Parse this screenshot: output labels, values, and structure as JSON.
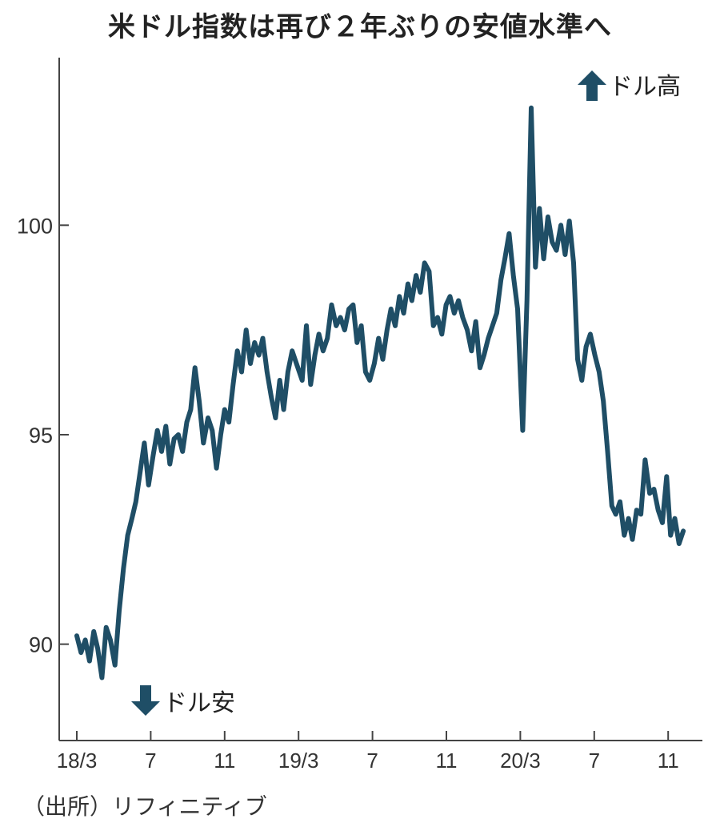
{
  "chart_data": {
    "type": "line",
    "title": "米ドル指数は再び２年ぶりの安値水準へ",
    "source": "（出所）リフィニティブ",
    "ylim": [
      87.7,
      104.0
    ],
    "yticks": [
      90,
      95,
      100
    ],
    "x_ticks": [
      {
        "label": "18/3",
        "date": "2018-03"
      },
      {
        "label": "7",
        "date": "2018-07"
      },
      {
        "label": "11",
        "date": "2018-11"
      },
      {
        "label": "19/3",
        "date": "2019-03"
      },
      {
        "label": "7",
        "date": "2019-07"
      },
      {
        "label": "11",
        "date": "2019-11"
      },
      {
        "label": "20/3",
        "date": "2020-03"
      },
      {
        "label": "7",
        "date": "2020-07"
      },
      {
        "label": "11",
        "date": "2020-11"
      }
    ],
    "annotations": [
      {
        "text": "ドル高",
        "arrow": "up",
        "placement": "top-right"
      },
      {
        "text": "ドル安",
        "arrow": "down",
        "placement": "bottom-left"
      }
    ],
    "grid": false,
    "series": [
      {
        "color": "#1f4e66",
        "points": [
          [
            "2018-03-01",
            90.2
          ],
          [
            "2018-03-08",
            89.8
          ],
          [
            "2018-03-15",
            90.1
          ],
          [
            "2018-03-22",
            89.6
          ],
          [
            "2018-03-29",
            90.3
          ],
          [
            "2018-04-05",
            89.9
          ],
          [
            "2018-04-12",
            89.2
          ],
          [
            "2018-04-19",
            90.4
          ],
          [
            "2018-04-26",
            90.1
          ],
          [
            "2018-05-03",
            89.5
          ],
          [
            "2018-05-10",
            90.8
          ],
          [
            "2018-05-17",
            91.8
          ],
          [
            "2018-05-24",
            92.6
          ],
          [
            "2018-05-31",
            93.0
          ],
          [
            "2018-06-07",
            93.4
          ],
          [
            "2018-06-14",
            94.1
          ],
          [
            "2018-06-21",
            94.8
          ],
          [
            "2018-06-28",
            93.8
          ],
          [
            "2018-07-05",
            94.5
          ],
          [
            "2018-07-12",
            95.1
          ],
          [
            "2018-07-19",
            94.6
          ],
          [
            "2018-07-26",
            95.2
          ],
          [
            "2018-08-02",
            94.3
          ],
          [
            "2018-08-09",
            94.9
          ],
          [
            "2018-08-16",
            95.0
          ],
          [
            "2018-08-23",
            94.6
          ],
          [
            "2018-08-30",
            95.3
          ],
          [
            "2018-09-06",
            95.6
          ],
          [
            "2018-09-13",
            96.6
          ],
          [
            "2018-09-20",
            95.8
          ],
          [
            "2018-09-27",
            94.8
          ],
          [
            "2018-10-04",
            95.4
          ],
          [
            "2018-10-11",
            95.1
          ],
          [
            "2018-10-18",
            94.2
          ],
          [
            "2018-10-25",
            95.0
          ],
          [
            "2018-11-01",
            95.6
          ],
          [
            "2018-11-08",
            95.3
          ],
          [
            "2018-11-15",
            96.2
          ],
          [
            "2018-11-22",
            97.0
          ],
          [
            "2018-11-29",
            96.5
          ],
          [
            "2018-12-06",
            97.5
          ],
          [
            "2018-12-13",
            96.7
          ],
          [
            "2018-12-20",
            97.2
          ],
          [
            "2018-12-27",
            96.9
          ],
          [
            "2019-01-03",
            97.3
          ],
          [
            "2019-01-10",
            96.5
          ],
          [
            "2019-01-17",
            95.9
          ],
          [
            "2019-01-24",
            95.4
          ],
          [
            "2019-01-31",
            96.3
          ],
          [
            "2019-02-07",
            95.6
          ],
          [
            "2019-02-14",
            96.5
          ],
          [
            "2019-02-21",
            97.0
          ],
          [
            "2019-02-28",
            96.7
          ],
          [
            "2019-03-07",
            96.3
          ],
          [
            "2019-03-14",
            97.6
          ],
          [
            "2019-03-21",
            96.2
          ],
          [
            "2019-03-28",
            96.9
          ],
          [
            "2019-04-04",
            97.4
          ],
          [
            "2019-04-11",
            97.0
          ],
          [
            "2019-04-18",
            97.3
          ],
          [
            "2019-04-25",
            98.1
          ],
          [
            "2019-05-02",
            97.6
          ],
          [
            "2019-05-09",
            97.8
          ],
          [
            "2019-05-16",
            97.5
          ],
          [
            "2019-05-23",
            98.0
          ],
          [
            "2019-05-30",
            98.1
          ],
          [
            "2019-06-06",
            97.2
          ],
          [
            "2019-06-13",
            97.6
          ],
          [
            "2019-06-20",
            96.5
          ],
          [
            "2019-06-27",
            96.3
          ],
          [
            "2019-07-04",
            96.7
          ],
          [
            "2019-07-11",
            97.3
          ],
          [
            "2019-07-18",
            96.8
          ],
          [
            "2019-07-25",
            97.5
          ],
          [
            "2019-08-01",
            98.0
          ],
          [
            "2019-08-08",
            97.6
          ],
          [
            "2019-08-15",
            98.3
          ],
          [
            "2019-08-22",
            97.9
          ],
          [
            "2019-08-29",
            98.6
          ],
          [
            "2019-09-05",
            98.2
          ],
          [
            "2019-09-12",
            98.8
          ],
          [
            "2019-09-19",
            98.4
          ],
          [
            "2019-09-26",
            99.1
          ],
          [
            "2019-10-03",
            98.9
          ],
          [
            "2019-10-10",
            97.6
          ],
          [
            "2019-10-17",
            97.8
          ],
          [
            "2019-10-24",
            97.4
          ],
          [
            "2019-10-31",
            98.1
          ],
          [
            "2019-11-07",
            98.3
          ],
          [
            "2019-11-14",
            97.9
          ],
          [
            "2019-11-21",
            98.2
          ],
          [
            "2019-11-28",
            97.8
          ],
          [
            "2019-12-05",
            97.5
          ],
          [
            "2019-12-12",
            97.0
          ],
          [
            "2019-12-19",
            97.7
          ],
          [
            "2019-12-26",
            96.6
          ],
          [
            "2020-01-02",
            96.9
          ],
          [
            "2020-01-09",
            97.3
          ],
          [
            "2020-01-16",
            97.6
          ],
          [
            "2020-01-23",
            97.9
          ],
          [
            "2020-01-30",
            98.7
          ],
          [
            "2020-02-06",
            99.2
          ],
          [
            "2020-02-13",
            99.8
          ],
          [
            "2020-02-20",
            98.8
          ],
          [
            "2020-02-27",
            98.0
          ],
          [
            "2020-03-05",
            95.1
          ],
          [
            "2020-03-12",
            98.2
          ],
          [
            "2020-03-19",
            102.8
          ],
          [
            "2020-03-26",
            99.0
          ],
          [
            "2020-04-02",
            100.4
          ],
          [
            "2020-04-09",
            99.2
          ],
          [
            "2020-04-16",
            100.2
          ],
          [
            "2020-04-23",
            99.6
          ],
          [
            "2020-04-30",
            99.4
          ],
          [
            "2020-05-07",
            100.0
          ],
          [
            "2020-05-14",
            99.3
          ],
          [
            "2020-05-21",
            100.1
          ],
          [
            "2020-05-28",
            99.1
          ],
          [
            "2020-06-04",
            96.8
          ],
          [
            "2020-06-11",
            96.3
          ],
          [
            "2020-06-18",
            97.1
          ],
          [
            "2020-06-25",
            97.4
          ],
          [
            "2020-07-02",
            96.9
          ],
          [
            "2020-07-09",
            96.5
          ],
          [
            "2020-07-16",
            95.8
          ],
          [
            "2020-07-23",
            94.6
          ],
          [
            "2020-07-30",
            93.3
          ],
          [
            "2020-08-06",
            93.1
          ],
          [
            "2020-08-13",
            93.4
          ],
          [
            "2020-08-20",
            92.6
          ],
          [
            "2020-08-27",
            93.0
          ],
          [
            "2020-09-03",
            92.5
          ],
          [
            "2020-09-10",
            93.2
          ],
          [
            "2020-09-17",
            93.1
          ],
          [
            "2020-09-24",
            94.4
          ],
          [
            "2020-10-01",
            93.6
          ],
          [
            "2020-10-08",
            93.7
          ],
          [
            "2020-10-15",
            93.2
          ],
          [
            "2020-10-22",
            92.9
          ],
          [
            "2020-10-29",
            94.0
          ],
          [
            "2020-11-05",
            92.6
          ],
          [
            "2020-11-12",
            93.0
          ],
          [
            "2020-11-19",
            92.4
          ],
          [
            "2020-11-26",
            92.7
          ]
        ]
      }
    ]
  }
}
